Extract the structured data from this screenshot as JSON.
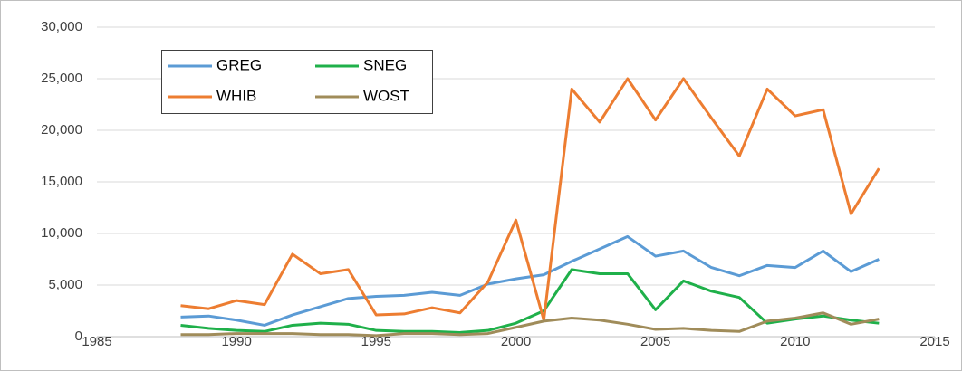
{
  "chart_data": {
    "type": "line",
    "x": [
      1988,
      1989,
      1990,
      1991,
      1992,
      1993,
      1994,
      1995,
      1996,
      1997,
      1998,
      1999,
      2000,
      2001,
      2002,
      2003,
      2004,
      2005,
      2006,
      2007,
      2008,
      2009,
      2010,
      2011,
      2012,
      2013
    ],
    "series": [
      {
        "name": "GREG",
        "color": "#5b9bd5",
        "values": [
          1900,
          2000,
          1600,
          1100,
          2100,
          2900,
          3700,
          3900,
          4000,
          4300,
          4000,
          5100,
          5600,
          6000,
          7300,
          8500,
          9700,
          7800,
          8300,
          6700,
          5900,
          6900,
          6700,
          8300,
          6300,
          7500
        ]
      },
      {
        "name": "SNEG",
        "color": "#1fb04a",
        "values": [
          1100,
          800,
          600,
          500,
          1100,
          1300,
          1200,
          600,
          500,
          500,
          400,
          600,
          1300,
          2500,
          6500,
          6100,
          6100,
          2600,
          5400,
          4400,
          3800,
          1300,
          1700,
          2000,
          1600,
          1300
        ]
      },
      {
        "name": "WHIB",
        "color": "#ed7d31",
        "values": [
          3000,
          2700,
          3500,
          3100,
          8000,
          6100,
          6500,
          2100,
          2200,
          2800,
          2300,
          5300,
          11300,
          1600,
          24000,
          20800,
          25000,
          21000,
          25000,
          21200,
          17500,
          24000,
          21400,
          22000,
          11900,
          16300
        ]
      },
      {
        "name": "WOST",
        "color": "#a08c5a",
        "values": [
          200,
          200,
          300,
          300,
          300,
          200,
          200,
          100,
          300,
          300,
          200,
          300,
          900,
          1500,
          1800,
          1600,
          1200,
          700,
          800,
          600,
          500,
          1500,
          1800,
          2300,
          1200,
          1700
        ]
      }
    ],
    "xlim": [
      1985,
      2015
    ],
    "xticks": [
      1985,
      1990,
      1995,
      2000,
      2005,
      2010,
      2015
    ],
    "ylim": [
      0,
      30000
    ],
    "yticks": [
      0,
      {
        "value": 5000,
        "label": "5,000"
      },
      {
        "value": 10000,
        "label": "10,000"
      },
      {
        "value": 15000,
        "label": "15,000"
      },
      {
        "value": 20000,
        "label": "20,000"
      },
      {
        "value": 25000,
        "label": "25,000"
      },
      {
        "value": 30000,
        "label": "30,000"
      }
    ],
    "grid": true,
    "legend": "upper-left"
  }
}
